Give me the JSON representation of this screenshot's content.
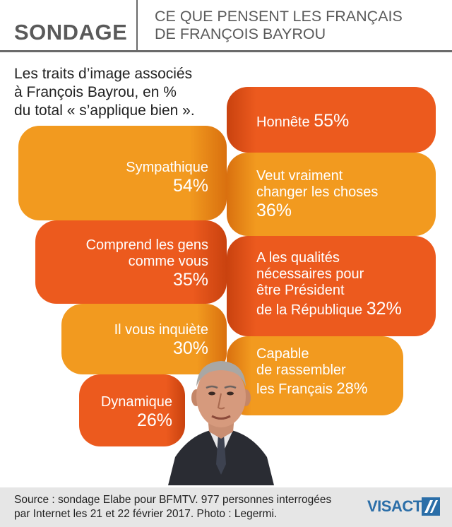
{
  "header": {
    "tag": "SONDAGE",
    "title_line1": "CE QUE PENSENT LES FRANÇAIS",
    "title_line2": "DE FRANÇOIS BAYROU"
  },
  "subtitle": {
    "line1": "Les traits d’image associés",
    "line2": "à François Bayrou, en %",
    "line3": "du total « s’applique bien »."
  },
  "chart_data": {
    "type": "bar",
    "title": "CE QUE PENSENT LES FRANÇAIS DE FRANÇOIS BAYROU",
    "subtitle": "Les traits d’image associés à François Bayrou, en % du total « s’applique bien ».",
    "unit": "%",
    "categories": [
      "Honnête",
      "Sympathique",
      "Veut vraiment changer les choses",
      "Comprend les gens comme vous",
      "A les qualités nécessaires pour être Président de la République",
      "Il vous inquiète",
      "Capable de rassembler les Français",
      "Dynamique"
    ],
    "values": [
      55,
      54,
      36,
      35,
      32,
      30,
      28,
      26
    ],
    "colors": {
      "orange": "#f29a1f",
      "red": "#ec5a1e"
    }
  },
  "items": {
    "honnete": {
      "line1": "Honnête",
      "pct": "55%"
    },
    "sympathique": {
      "line1": "Sympathique",
      "pct": "54%"
    },
    "changer": {
      "line1": "Veut vraiment",
      "line2": "changer les choses",
      "pct": "36%"
    },
    "comprend": {
      "line1": "Comprend les gens",
      "line2": "comme vous",
      "pct": "35%"
    },
    "qualites": {
      "line1": "A les qualités",
      "line2": "nécessaires pour",
      "line3": "être Président",
      "line4": "de la République",
      "pct": "32%"
    },
    "inquiete": {
      "line1": "Il vous inquiète",
      "pct": "30%"
    },
    "rassembler": {
      "line1": "Capable",
      "line2": "de rassembler",
      "line3": "les Français",
      "pct": "28%"
    },
    "dynamique": {
      "line1": "Dynamique",
      "pct": "26%"
    }
  },
  "footer": {
    "source_line1": "Source : sondage Elabe pour BFMTV. 977 personnes interrogées",
    "source_line2": "par Internet les 21 et 22 février 2017. Photo : Legermi.",
    "brand": "VISACTU"
  }
}
